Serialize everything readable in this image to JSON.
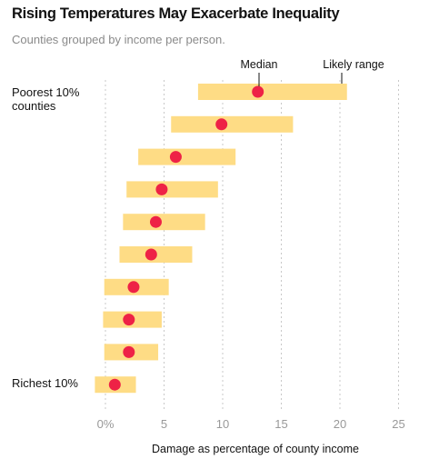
{
  "chart_data": {
    "type": "range-dot",
    "title": "Rising Temperatures May Exacerbate Inequality",
    "subtitle": "Counties grouped by income per person.",
    "xlabel": "Damage as percentage of county income",
    "xlim": [
      -0.5,
      25
    ],
    "ticks": [
      0,
      5,
      10,
      15,
      20,
      25
    ],
    "tick_labels": [
      "0%",
      "5",
      "10",
      "15",
      "20",
      "25"
    ],
    "row_labels": [
      "Poorest 10% counties",
      "",
      "",
      "",
      "",
      "",
      "",
      "",
      "",
      "Richest 10%"
    ],
    "annotations": {
      "median": "Median",
      "range": "Likely range"
    },
    "series": [
      {
        "name": "Median",
        "values": [
          13.0,
          9.9,
          6.0,
          4.8,
          4.3,
          3.9,
          2.4,
          2.0,
          2.0,
          0.8
        ]
      },
      {
        "name": "Likely range",
        "low": [
          7.9,
          5.6,
          2.8,
          1.8,
          1.5,
          1.2,
          -0.1,
          -0.2,
          -0.1,
          -0.9
        ],
        "high": [
          20.6,
          16.0,
          11.1,
          9.6,
          8.5,
          7.4,
          5.4,
          4.8,
          4.5,
          2.6
        ]
      }
    ],
    "colors": {
      "range": "#fedc85",
      "median": "#ee2246",
      "grid": "#c8c8c8"
    },
    "grid": "vertical-dotted",
    "legend": "annotations above first row"
  }
}
